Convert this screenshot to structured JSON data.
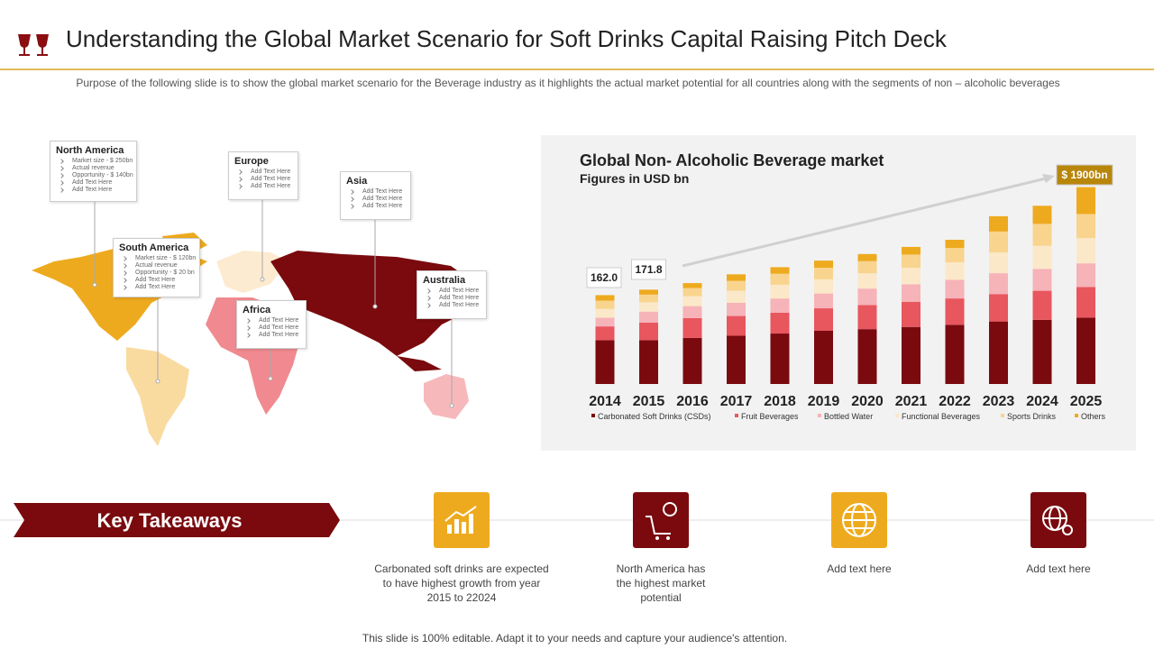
{
  "header": {
    "title": "Understanding the Global Market Scenario for Soft Drinks Capital Raising Pitch Deck",
    "subtitle": "Purpose of the following slide is to show the global market scenario for the Beverage  industry as it highlights the actual market potential for all countries along with the segments of non – alcoholic beverages"
  },
  "map": {
    "regions": [
      {
        "name": "North America",
        "items": [
          "Market size - $ 250bn",
          "Actual revenue",
          "Opportunity - $ 140bn",
          "Add Text Here",
          "Add Text Here"
        ]
      },
      {
        "name": "South America",
        "items": [
          "Market size - $ 120bn",
          "Actual revenue",
          "Opportunity - $ 20 bn",
          "Add Text Here",
          "Add Text Here"
        ]
      },
      {
        "name": "Europe",
        "items": [
          "Add Text Here",
          "Add Text Here",
          "Add Text Here"
        ]
      },
      {
        "name": "Asia",
        "items": [
          "Add Text Here",
          "Add Text Here",
          "Add Text Here"
        ]
      },
      {
        "name": "Africa",
        "items": [
          "Add Text Here",
          "Add Text Here",
          "Add Text Here"
        ]
      },
      {
        "name": "Australia",
        "items": [
          "Add Text Here",
          "Add Text Here",
          "Add Text Here"
        ]
      }
    ]
  },
  "chart_data": {
    "type": "stacked_bar",
    "title": "Global Non- Alcoholic Beverage market",
    "subtitle": "Figures in USD bn",
    "categories": [
      "2014",
      "2015",
      "2016",
      "2017",
      "2018",
      "2019",
      "2020",
      "2021",
      "2022",
      "2023",
      "2024",
      "2025"
    ],
    "ylim": [
      0,
      360
    ],
    "annotations": [
      "162.0",
      "171.8",
      "$ 1900bn"
    ],
    "series": [
      {
        "name": "Carbonated Soft Drinks (CSDs)",
        "color": "#7a0a0e",
        "values": [
          80,
          80,
          84,
          88,
          92,
          97,
          100,
          104,
          108,
          114,
          117,
          121
        ]
      },
      {
        "name": "Fruit Beverages",
        "color": "#e8565e",
        "values": [
          25,
          32,
          36,
          36,
          38,
          41,
          44,
          46,
          48,
          50,
          53,
          56
        ]
      },
      {
        "name": "Bottled Water",
        "color": "#f6b3b8",
        "values": [
          16,
          20,
          22,
          24,
          26,
          27,
          30,
          32,
          34,
          38,
          40,
          43
        ]
      },
      {
        "name": "Functional Beverages",
        "color": "#fbe8c8",
        "values": [
          16,
          17,
          18,
          22,
          25,
          26,
          28,
          30,
          32,
          38,
          42,
          46
        ]
      },
      {
        "name": "Sports Drinks",
        "color": "#f8d48e",
        "values": [
          15,
          14,
          15,
          18,
          20,
          21,
          22,
          24,
          26,
          38,
          40,
          44
        ]
      },
      {
        "name": "Others",
        "color": "#eeaa1e",
        "values": [
          10,
          9,
          9,
          12,
          12,
          13,
          13,
          14,
          15,
          28,
          33,
          49
        ]
      }
    ]
  },
  "takeaways": {
    "title": "Key Takeaways",
    "items": [
      "Carbonated  soft drinks are expected to have highest growth from year 2015 to 22024",
      "North America has the highest market potential",
      "Add text here",
      "Add text here"
    ]
  },
  "footer": "This slide is 100% editable. Adapt it to your needs and capture your audience's attention."
}
